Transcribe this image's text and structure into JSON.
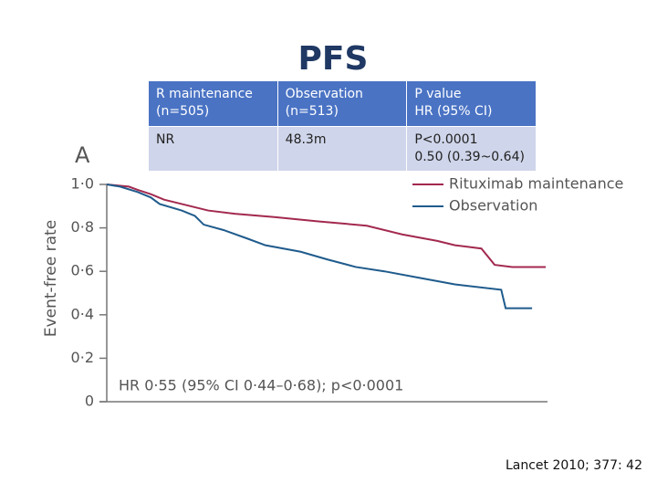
{
  "title": "PFS",
  "table": {
    "rows": [
      [
        [
          "R maintenance",
          "(n=505)"
        ],
        [
          "Observation",
          "(n=513)"
        ],
        [
          "P value",
          "HR (95% CI)"
        ]
      ],
      [
        [
          "NR"
        ],
        [
          "48.3m"
        ],
        [
          "P<0.0001",
          "0.50 (0.39~0.64)"
        ]
      ]
    ]
  },
  "citation": "Lancet 2010; 377: 42",
  "chart_data": {
    "type": "line",
    "panel_label": "A",
    "y_label": "Event-free rate",
    "annotation": "HR 0·55 (95% CI 0·44–0·68); p<0·0001",
    "xlim": [
      0,
      100
    ],
    "ylim": [
      0,
      1
    ],
    "yticks": [
      0,
      {
        "value": 0.2,
        "label": "0·2"
      },
      {
        "value": 0.4,
        "label": "0·4"
      },
      {
        "value": 0.6,
        "label": "0·6"
      },
      {
        "value": 0.8,
        "label": "0·8"
      },
      {
        "value": 1,
        "label": "1·0"
      }
    ],
    "legend": "top-right",
    "series": [
      {
        "name": "Rituximab maintenance",
        "color": "#a3294f",
        "x": [
          0,
          5,
          7,
          10,
          13,
          17,
          23,
          29,
          38,
          48,
          59,
          67,
          75,
          79,
          85,
          88,
          92,
          99.6
        ],
        "values": [
          1.0,
          0.99,
          0.975,
          0.955,
          0.93,
          0.91,
          0.88,
          0.865,
          0.85,
          0.83,
          0.81,
          0.77,
          0.74,
          0.72,
          0.705,
          0.63,
          0.62,
          0.62
        ]
      },
      {
        "name": "Observation",
        "color": "#1f5b8c",
        "x": [
          0,
          3,
          7,
          10,
          12,
          17,
          20,
          22,
          26.5,
          32,
          36,
          44,
          50,
          56.5,
          63,
          71,
          79,
          89.5,
          90.5,
          96.5
        ],
        "values": [
          1.0,
          0.99,
          0.965,
          0.94,
          0.91,
          0.88,
          0.855,
          0.815,
          0.79,
          0.75,
          0.72,
          0.69,
          0.655,
          0.62,
          0.6,
          0.57,
          0.54,
          0.515,
          0.43,
          0.43
        ]
      }
    ]
  }
}
